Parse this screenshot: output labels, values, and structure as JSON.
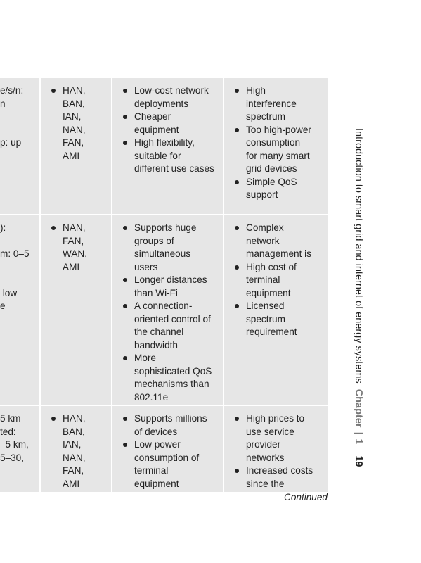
{
  "table": {
    "rows": [
      {
        "col1": "e/s/n:\nn\n\n\np: up",
        "applications": [
          "HAN,",
          "BAN,",
          "IAN,",
          "NAN,",
          "FAN,",
          "AMI"
        ],
        "advantages": [
          "Low-cost network\ndeployments",
          "Cheaper\nequipment",
          "High flexibility,\nsuitable for\ndifferent use cases"
        ],
        "disadvantages": [
          "High\ninterference\nspectrum",
          "Too high-power\nconsumption\nfor many smart\ngrid devices",
          "Simple QoS\nsupport"
        ]
      },
      {
        "col1": "):\n\nm: 0–5\n\n\n low\ne",
        "applications": [
          "NAN,",
          "FAN,",
          "WAN,",
          "AMI"
        ],
        "advantages": [
          "Supports huge\ngroups of\nsimultaneous\nusers",
          "Longer distances\nthan Wi-Fi",
          "A connection-\noriented control of\nthe channel\nbandwidth",
          "More\nsophisticated QoS\nmechanisms than\n802.11e"
        ],
        "disadvantages": [
          "Complex\nnetwork\nmanagement is",
          "High cost of\nterminal\nequipment",
          "Licensed\nspectrum\nrequirement"
        ]
      },
      {
        "col1": "5 km\nted:\n–5 km,\n5–30,",
        "applications": [
          "HAN,",
          "BAN,",
          "IAN,",
          "NAN,",
          "FAN,",
          "AMI"
        ],
        "advantages": [
          "Supports millions\nof devices",
          "Low power\nconsumption of\nterminal\nequipment"
        ],
        "disadvantages": [
          "High prices to\nuse service\nprovider\nnetworks",
          "Increased costs\nsince the"
        ]
      }
    ],
    "continued_label": "Continued"
  },
  "running_head": {
    "title": "Introduction to smart grid and internet of energy systems",
    "chapter_label": "Chapter",
    "separator": "|",
    "chapter_number": "1",
    "page_number": "19"
  }
}
